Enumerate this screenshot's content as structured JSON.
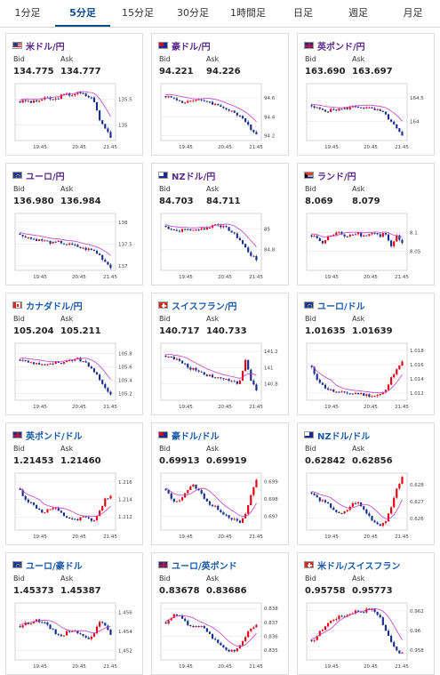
{
  "tabs": [
    {
      "label": "1分足",
      "active": false
    },
    {
      "label": "5分足",
      "active": true
    },
    {
      "label": "15分足",
      "active": false
    },
    {
      "label": "30分足",
      "active": false
    },
    {
      "label": "1時間足",
      "active": false
    },
    {
      "label": "日足",
      "active": false
    },
    {
      "label": "週足",
      "active": false
    },
    {
      "label": "月足",
      "active": false
    }
  ],
  "labels": {
    "bid": "Bid",
    "ask": "Ask"
  },
  "colors": {
    "up": "#e60012",
    "down": "#1a2d8c",
    "ma": "#c040c8",
    "title_purple": "#5a2a8a",
    "title_blue": "#1a5aa8"
  },
  "cards": [
    {
      "title": "米ドル/円",
      "flag": "us-flag",
      "title_color": "purple",
      "bid": "134.775",
      "ask": "134.777",
      "x_ticks": [
        "19:45",
        "20:45",
        "21:45"
      ],
      "y_ticks": [
        "135.5",
        "135"
      ],
      "chart_data": {
        "type": "candlestick",
        "ylim": [
          134.7,
          135.8
        ],
        "close_path": [
          135.45,
          135.47,
          135.44,
          135.46,
          135.5,
          135.52,
          135.48,
          135.55,
          135.6,
          135.58,
          135.62,
          135.6,
          135.55,
          135.5,
          135.1,
          134.95,
          134.78
        ]
      }
    },
    {
      "title": "豪ドル/円",
      "flag": "au-flag",
      "title_color": "purple",
      "bid": "94.221",
      "ask": "94.226",
      "x_ticks": [
        "19:45",
        "20:45",
        "21:45"
      ],
      "y_ticks": [
        "94.6",
        "94.4",
        "94.2"
      ],
      "chart_data": {
        "type": "candlestick",
        "ylim": [
          94.15,
          94.75
        ],
        "close_path": [
          94.62,
          94.6,
          94.58,
          94.55,
          94.57,
          94.56,
          94.58,
          94.57,
          94.55,
          94.52,
          94.5,
          94.48,
          94.45,
          94.4,
          94.35,
          94.28,
          94.22
        ]
      }
    },
    {
      "title": "英ポンド/円",
      "flag": "uk-flag",
      "title_color": "purple",
      "bid": "163.690",
      "ask": "163.697",
      "x_ticks": [
        "19:45",
        "20:45",
        "21:45"
      ],
      "y_ticks": [
        "164.5",
        "164"
      ],
      "chart_data": {
        "type": "candlestick",
        "ylim": [
          163.6,
          164.8
        ],
        "close_path": [
          164.3,
          164.28,
          164.25,
          164.22,
          164.26,
          164.25,
          164.28,
          164.3,
          164.32,
          164.3,
          164.28,
          164.25,
          164.22,
          164.15,
          164.0,
          163.85,
          163.69
        ]
      }
    },
    {
      "title": "ユーロ/円",
      "flag": "eu-flag",
      "title_color": "purple",
      "bid": "136.980",
      "ask": "136.984",
      "x_ticks": [
        "19:45",
        "20:45",
        "21:45"
      ],
      "y_ticks": [
        "138",
        "137.5",
        "137"
      ],
      "chart_data": {
        "type": "candlestick",
        "ylim": [
          136.9,
          138.2
        ],
        "close_path": [
          137.7,
          137.68,
          137.62,
          137.6,
          137.58,
          137.55,
          137.52,
          137.55,
          137.5,
          137.48,
          137.45,
          137.4,
          137.38,
          137.35,
          137.25,
          137.1,
          136.98
        ]
      }
    },
    {
      "title": "NZドル/円",
      "flag": "nz-flag",
      "title_color": "purple",
      "bid": "84.703",
      "ask": "84.711",
      "x_ticks": [
        "19:45",
        "20:45",
        "21:45"
      ],
      "y_ticks": [
        "85",
        "84.8"
      ],
      "chart_data": {
        "type": "candlestick",
        "ylim": [
          84.6,
          85.15
        ],
        "close_path": [
          85.02,
          85.0,
          84.98,
          84.99,
          85.0,
          84.98,
          85.01,
          85.0,
          85.03,
          85.05,
          85.02,
          85.0,
          84.95,
          84.9,
          84.82,
          84.75,
          84.7
        ]
      }
    },
    {
      "title": "ランド/円",
      "flag": "za-flag",
      "title_color": "purple",
      "bid": "8.069",
      "ask": "8.079",
      "x_ticks": [
        "19:45",
        "20:45",
        "21:45"
      ],
      "y_ticks": [
        "8.1",
        "8.05"
      ],
      "chart_data": {
        "type": "candlestick",
        "ylim": [
          8.0,
          8.15
        ],
        "close_path": [
          8.09,
          8.085,
          8.07,
          8.09,
          8.095,
          8.1,
          8.09,
          8.095,
          8.1,
          8.09,
          8.095,
          8.1,
          8.09,
          8.1,
          8.06,
          8.09,
          8.07
        ]
      }
    },
    {
      "title": "カナダドル/円",
      "flag": "ca-flag",
      "title_color": "blue",
      "bid": "105.204",
      "ask": "105.211",
      "x_ticks": [
        "19:45",
        "20:45",
        "21:45"
      ],
      "y_ticks": [
        "105.8",
        "105.6",
        "105.4",
        "105.2"
      ],
      "chart_data": {
        "type": "candlestick",
        "ylim": [
          105.1,
          105.95
        ],
        "close_path": [
          105.7,
          105.68,
          105.66,
          105.65,
          105.64,
          105.62,
          105.66,
          105.64,
          105.66,
          105.7,
          105.72,
          105.68,
          105.62,
          105.55,
          105.4,
          105.28,
          105.2
        ]
      }
    },
    {
      "title": "スイスフラン/円",
      "flag": "ch-flag",
      "title_color": "blue",
      "bid": "140.717",
      "ask": "140.733",
      "x_ticks": [
        "19:45",
        "20:45",
        "21:45"
      ],
      "y_ticks": [
        "141.2",
        "141",
        "140.8"
      ],
      "chart_data": {
        "type": "candlestick",
        "ylim": [
          140.6,
          141.3
        ],
        "close_path": [
          141.15,
          141.12,
          141.1,
          141.05,
          141.0,
          140.98,
          140.95,
          140.92,
          140.9,
          140.88,
          140.86,
          140.85,
          140.84,
          140.8,
          141.1,
          140.85,
          140.72
        ]
      }
    },
    {
      "title": "ユーロ/ドル",
      "flag": "eu-flag",
      "title_color": "blue",
      "bid": "1.01635",
      "ask": "1.01639",
      "x_ticks": [
        "19:45",
        "20:45",
        "21:45"
      ],
      "y_ticks": [
        "1.018",
        "1.016",
        "1.014",
        "1.012"
      ],
      "chart_data": {
        "type": "candlestick",
        "ylim": [
          1.011,
          1.019
        ],
        "close_path": [
          1.0155,
          1.014,
          1.013,
          1.0125,
          1.0122,
          1.012,
          1.0121,
          1.0119,
          1.012,
          1.0118,
          1.0117,
          1.0116,
          1.0118,
          1.0122,
          1.014,
          1.0155,
          1.0163
        ]
      }
    },
    {
      "title": "英ポンド/ドル",
      "flag": "uk-flag",
      "title_color": "blue",
      "bid": "1.21453",
      "ask": "1.21460",
      "x_ticks": [
        "19:45",
        "20:45",
        "21:45"
      ],
      "y_ticks": [
        "1.216",
        "1.214",
        "1.212"
      ],
      "chart_data": {
        "type": "candlestick",
        "ylim": [
          1.2105,
          1.217
        ],
        "close_path": [
          1.215,
          1.214,
          1.2135,
          1.213,
          1.2125,
          1.2128,
          1.213,
          1.2125,
          1.212,
          1.2118,
          1.2115,
          1.212,
          1.2118,
          1.2115,
          1.2125,
          1.214,
          1.2145
        ]
      }
    },
    {
      "title": "豪ドル/ドル",
      "flag": "au-flag",
      "title_color": "blue",
      "bid": "0.69913",
      "ask": "0.69919",
      "x_ticks": [
        "19:45",
        "20:45",
        "21:45"
      ],
      "y_ticks": [
        "0.699",
        "0.698",
        "0.697"
      ],
      "chart_data": {
        "type": "candlestick",
        "ylim": [
          0.6962,
          0.6995
        ],
        "close_path": [
          0.6985,
          0.698,
          0.6978,
          0.6982,
          0.6986,
          0.6988,
          0.6984,
          0.698,
          0.6976,
          0.6975,
          0.6972,
          0.697,
          0.6968,
          0.6966,
          0.697,
          0.6982,
          0.6991
        ]
      }
    },
    {
      "title": "NZドル/ドル",
      "flag": "nz-flag",
      "title_color": "blue",
      "bid": "0.62842",
      "ask": "0.62856",
      "x_ticks": [
        "19:45",
        "20:45",
        "21:45"
      ],
      "y_ticks": [
        "0.628",
        "0.627",
        "0.626"
      ],
      "chart_data": {
        "type": "candlestick",
        "ylim": [
          0.6253,
          0.6287
        ],
        "close_path": [
          0.6275,
          0.6272,
          0.627,
          0.6268,
          0.6265,
          0.6262,
          0.6264,
          0.6268,
          0.627,
          0.6266,
          0.6262,
          0.6258,
          0.6256,
          0.6258,
          0.6265,
          0.6278,
          0.6284
        ]
      }
    },
    {
      "title": "ユーロ/豪ドル",
      "flag": "eu-flag",
      "title_color": "blue",
      "bid": "1.45373",
      "ask": "1.45387",
      "x_ticks": [
        "19:45",
        "20:45",
        "21:45"
      ],
      "y_ticks": [
        "1.456",
        "1.454",
        "1.452"
      ],
      "chart_data": {
        "type": "candlestick",
        "ylim": [
          1.451,
          1.457
        ],
        "close_path": [
          1.4545,
          1.4548,
          1.455,
          1.4552,
          1.455,
          1.4545,
          1.454,
          1.4535,
          1.4538,
          1.4542,
          1.454,
          1.4535,
          1.4532,
          1.4538,
          1.4552,
          1.4545,
          1.4537
        ]
      }
    },
    {
      "title": "ユーロ/英ポンド",
      "flag": "uk-flag",
      "title_color": "blue",
      "bid": "0.83678",
      "ask": "0.83686",
      "x_ticks": [
        "19:45",
        "20:45",
        "21:45"
      ],
      "y_ticks": [
        "0.838",
        "0.837",
        "0.836",
        "0.835"
      ],
      "chart_data": {
        "type": "candlestick",
        "ylim": [
          0.8343,
          0.8384
        ],
        "close_path": [
          0.837,
          0.8374,
          0.8376,
          0.8372,
          0.8368,
          0.8366,
          0.8368,
          0.8364,
          0.836,
          0.8356,
          0.8352,
          0.835,
          0.8349,
          0.8352,
          0.836,
          0.8365,
          0.8368
        ]
      }
    },
    {
      "title": "米ドル/スイスフラン",
      "flag": "ch-flag",
      "title_color": "blue",
      "bid": "0.95758",
      "ask": "0.95773",
      "x_ticks": [
        "19:45",
        "20:45",
        "21:45"
      ],
      "y_ticks": [
        "0.962",
        "0.96",
        "0.958"
      ],
      "chart_data": {
        "type": "candlestick",
        "ylim": [
          0.957,
          0.9628
        ],
        "close_path": [
          0.9588,
          0.9595,
          0.9602,
          0.9608,
          0.9612,
          0.9614,
          0.9615,
          0.9618,
          0.962,
          0.9619,
          0.9622,
          0.962,
          0.9615,
          0.96,
          0.959,
          0.958,
          0.9576
        ]
      }
    }
  ]
}
